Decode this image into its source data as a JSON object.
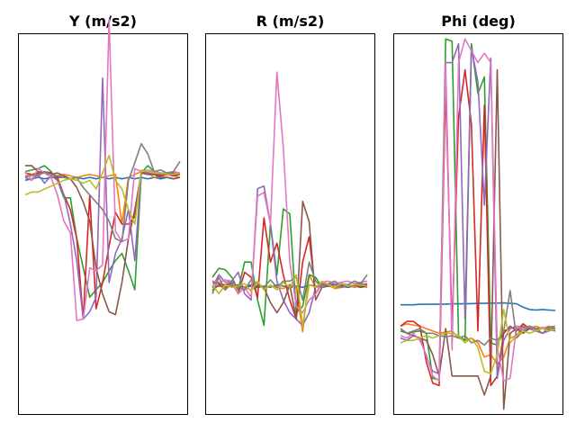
{
  "chart_data": [
    {
      "type": "line",
      "title": "Y (m/s2)",
      "x": [
        0,
        1,
        2,
        3,
        4,
        5,
        6,
        7,
        8,
        9,
        10,
        11,
        12,
        13,
        14,
        15,
        16,
        17,
        18,
        19,
        20,
        21,
        22,
        23,
        24
      ],
      "ylim": [
        -1.6,
        1.0
      ],
      "series": [
        {
          "color": "#1f77b4",
          "values": [
            0.0,
            0.01,
            0.02,
            0.01,
            0.02,
            0.02,
            0.02,
            0.01,
            0.02,
            0.01,
            0.02,
            0.01,
            0.02,
            0.01,
            0.02,
            0.01,
            0.02,
            0.01,
            0.02,
            0.01,
            0.02,
            0.01,
            0.02,
            0.01,
            0.02
          ]
        },
        {
          "color": "#ff7f0e",
          "values": [
            0.03,
            0.03,
            0.04,
            0.05,
            0.04,
            0.03,
            0.04,
            0.03,
            0.02,
            0.03,
            0.04,
            0.03,
            0.02,
            0.03,
            0.04,
            -0.3,
            0.02,
            0.04,
            0.06,
            0.05,
            0.02,
            0.03,
            0.04,
            0.03,
            0.02
          ]
        },
        {
          "color": "#2ca02c",
          "values": [
            0.06,
            0.07,
            0.08,
            0.1,
            0.06,
            0.0,
            -0.12,
            -0.12,
            -0.4,
            -0.6,
            -0.8,
            -0.75,
            -0.7,
            -0.62,
            -0.55,
            -0.5,
            -0.62,
            -0.75,
            0.05,
            0.1,
            0.06,
            0.05,
            0.04,
            0.05,
            0.05
          ]
        },
        {
          "color": "#d62728",
          "values": [
            0.05,
            0.04,
            0.05,
            0.06,
            0.05,
            0.02,
            -0.1,
            -0.2,
            -0.4,
            -0.95,
            -0.1,
            -0.88,
            -0.7,
            -0.45,
            -0.22,
            -0.3,
            -0.3,
            -0.25,
            0.06,
            0.05,
            0.04,
            0.03,
            0.04,
            0.03,
            0.04
          ]
        },
        {
          "color": "#9467bd",
          "values": [
            0.02,
            0.0,
            0.04,
            -0.02,
            0.03,
            0.0,
            -0.1,
            -0.3,
            -0.55,
            -0.95,
            -0.9,
            -0.8,
            0.7,
            -0.7,
            -0.5,
            -0.4,
            -0.2,
            -0.55,
            0.06,
            0.05,
            0.05,
            0.04,
            0.05,
            0.05,
            0.04
          ]
        },
        {
          "color": "#8c564b",
          "values": [
            0.1,
            0.1,
            0.06,
            0.05,
            0.04,
            0.05,
            0.03,
            0.01,
            -0.05,
            -0.15,
            -0.28,
            -0.6,
            -0.78,
            -0.9,
            -0.92,
            -0.7,
            -0.4,
            -0.2,
            0.05,
            0.04,
            0.04,
            0.02,
            0.02,
            0.01,
            0.02
          ]
        },
        {
          "color": "#e377c2",
          "values": [
            0.06,
            0.0,
            0.08,
            0.05,
            0.02,
            -0.1,
            -0.28,
            -0.36,
            -0.96,
            -0.95,
            -0.6,
            -0.62,
            -0.58,
            1.1,
            -0.35,
            -0.42,
            -0.4,
            0.08,
            0.06,
            0.07,
            0.06,
            0.05,
            0.05,
            0.06,
            0.05
          ]
        },
        {
          "color": "#7f7f7f",
          "values": [
            0.02,
            0.04,
            0.03,
            0.06,
            0.04,
            0.03,
            0.02,
            0.01,
            0.02,
            -0.05,
            -0.1,
            -0.15,
            -0.2,
            -0.28,
            -0.4,
            -0.42,
            0.0,
            0.12,
            0.25,
            0.18,
            0.06,
            0.07,
            0.05,
            0.06,
            0.13
          ]
        },
        {
          "color": "#bcbd22",
          "values": [
            -0.1,
            -0.08,
            -0.08,
            -0.06,
            -0.04,
            -0.02,
            0.0,
            0.01,
            0.0,
            -0.02,
            0.0,
            -0.06,
            0.05,
            0.17,
            0.0,
            -0.06,
            -0.2,
            -0.3,
            0.07,
            0.06,
            0.05,
            0.05,
            0.04,
            0.04,
            0.05
          ]
        }
      ]
    },
    {
      "type": "line",
      "title": "R (m/s2)",
      "x": [
        0,
        1,
        2,
        3,
        4,
        5,
        6,
        7,
        8,
        9,
        10,
        11,
        12,
        13,
        14,
        15,
        16,
        17,
        18,
        19,
        20,
        21,
        22,
        23,
        24
      ],
      "ylim": [
        -1.0,
        2.0
      ],
      "series": [
        {
          "color": "#1f77b4",
          "values": [
            0.0,
            0.01,
            0.0,
            0.01,
            0.02,
            0.0,
            0.01,
            0.0,
            0.01,
            0.0,
            0.02,
            0.01,
            0.0,
            0.01,
            0.0,
            0.02,
            0.01,
            0.0,
            0.01,
            0.0,
            0.01,
            0.0,
            0.01,
            0.0,
            0.01
          ]
        },
        {
          "color": "#ff7f0e",
          "values": [
            -0.03,
            0.02,
            -0.02,
            0.03,
            0.01,
            0.0,
            -0.02,
            0.02,
            0.0,
            0.01,
            0.0,
            -0.01,
            0.02,
            0.0,
            -0.35,
            0.1,
            0.0,
            0.01,
            0.02,
            -0.01,
            0.0,
            0.02,
            0.0,
            0.01,
            0.0
          ]
        },
        {
          "color": "#2ca02c",
          "values": [
            0.08,
            0.15,
            0.14,
            0.08,
            -0.02,
            0.2,
            0.2,
            -0.1,
            -0.3,
            0.5,
            0.1,
            0.62,
            0.58,
            -0.2,
            -0.15,
            0.1,
            0.08,
            0.0,
            0.02,
            0.03,
            0.02,
            0.01,
            0.02,
            0.01,
            0.02
          ]
        },
        {
          "color": "#d62728",
          "values": [
            0.04,
            0.03,
            0.02,
            0.04,
            -0.05,
            0.12,
            0.08,
            -0.08,
            0.55,
            0.2,
            0.35,
            0.1,
            -0.1,
            -0.25,
            0.2,
            0.4,
            -0.05,
            0.03,
            0.02,
            0.03,
            0.02,
            0.01,
            0.02,
            0.03,
            0.02
          ]
        },
        {
          "color": "#9467bd",
          "values": [
            0.0,
            0.1,
            0.04,
            0.05,
            0.12,
            -0.05,
            -0.1,
            0.78,
            0.8,
            0.5,
            0.05,
            -0.1,
            -0.2,
            -0.25,
            -0.3,
            -0.2,
            0.0,
            0.02,
            0.03,
            0.02,
            0.03,
            0.02,
            0.01,
            0.02,
            0.03
          ]
        },
        {
          "color": "#8c564b",
          "values": [
            -0.02,
            0.02,
            0.0,
            0.03,
            0.01,
            0.0,
            0.02,
            0.01,
            0.0,
            -0.12,
            -0.2,
            -0.12,
            0.02,
            -0.25,
            0.68,
            0.52,
            -0.1,
            0.0,
            0.01,
            0.02,
            0.0,
            0.01,
            0.02,
            0.0,
            0.01
          ]
        },
        {
          "color": "#e377c2",
          "values": [
            0.05,
            0.04,
            0.06,
            0.05,
            -0.05,
            0.0,
            -0.08,
            0.72,
            0.75,
            0.5,
            1.7,
            1.1,
            0.2,
            -0.15,
            -0.2,
            -0.1,
            -0.05,
            0.04,
            0.05,
            0.03,
            0.04,
            0.05,
            0.03,
            0.04,
            0.05
          ]
        },
        {
          "color": "#7f7f7f",
          "values": [
            -0.05,
            0.08,
            -0.02,
            0.05,
            0.0,
            -0.02,
            0.06,
            0.03,
            0.0,
            0.06,
            0.0,
            0.05,
            0.05,
            0.08,
            -0.1,
            0.2,
            0.05,
            0.0,
            0.03,
            0.05,
            0.0,
            0.02,
            0.05,
            0.03,
            0.1
          ]
        },
        {
          "color": "#bcbd22",
          "values": [
            0.02,
            -0.05,
            0.02,
            0.0,
            0.01,
            0.03,
            -0.03,
            0.05,
            -0.02,
            0.02,
            -0.02,
            0.04,
            0.0,
            0.1,
            -0.3,
            0.02,
            0.0,
            0.05,
            0.02,
            0.0,
            0.03,
            0.01,
            0.02,
            0.02,
            0.01
          ]
        }
      ]
    },
    {
      "type": "line",
      "title": "Phi (deg)",
      "x": [
        0,
        1,
        2,
        3,
        4,
        5,
        6,
        7,
        8,
        9,
        10,
        11,
        12,
        13,
        14,
        15,
        16,
        17,
        18,
        19,
        20,
        21,
        22,
        23,
        24
      ],
      "ylim": [
        -4.0,
        12.0
      ],
      "series": [
        {
          "color": "#1f77b4",
          "values": [
            0.6,
            0.6,
            0.6,
            0.62,
            0.62,
            0.62,
            0.63,
            0.63,
            0.64,
            0.64,
            0.65,
            0.65,
            0.66,
            0.66,
            0.67,
            0.67,
            0.68,
            0.66,
            0.64,
            0.5,
            0.4,
            0.38,
            0.4,
            0.38,
            0.36
          ]
        },
        {
          "color": "#ff7f0e",
          "values": [
            -0.3,
            -0.2,
            -0.25,
            -0.3,
            -0.4,
            -0.5,
            -0.6,
            -0.55,
            -0.5,
            -0.8,
            -0.9,
            -0.8,
            -1.0,
            -1.6,
            -1.5,
            -1.9,
            -1.6,
            -0.8,
            -0.7,
            -0.3,
            -0.4,
            -0.3,
            -0.4,
            -0.3,
            -0.4
          ]
        },
        {
          "color": "#2ca02c",
          "values": [
            -0.5,
            -0.6,
            -0.55,
            -0.5,
            -0.6,
            -2.5,
            -2.55,
            11.8,
            11.7,
            -0.7,
            -0.9,
            11.6,
            9.5,
            10.2,
            -1.0,
            -1.1,
            -0.5,
            -0.4,
            -0.3,
            -0.35,
            -0.3,
            -0.4,
            -0.4,
            -0.35,
            -0.4
          ]
        },
        {
          "color": "#d62728",
          "values": [
            -0.3,
            -0.1,
            -0.1,
            -0.3,
            -1.8,
            -2.7,
            -2.8,
            9.8,
            -0.4,
            8.5,
            10.5,
            8.2,
            -0.5,
            9.0,
            -2.8,
            -2.4,
            -0.6,
            -0.3,
            -0.5,
            -0.2,
            -0.4,
            -0.5,
            -0.6,
            -0.5,
            -0.4
          ]
        },
        {
          "color": "#9467bd",
          "values": [
            -0.8,
            -0.9,
            -0.7,
            -0.8,
            -1.6,
            -2.2,
            -2.3,
            10.8,
            10.8,
            11.6,
            0.0,
            11.4,
            10.0,
            4.8,
            11.0,
            -2.5,
            -0.9,
            -0.4,
            -0.3,
            -0.5,
            -0.4,
            -0.5,
            -0.6,
            -0.5,
            -0.4
          ]
        },
        {
          "color": "#8c564b",
          "values": [
            -0.4,
            -0.6,
            -0.7,
            -0.8,
            -0.9,
            -1.5,
            -2.4,
            -0.4,
            -2.4,
            -2.4,
            -2.4,
            -2.4,
            -2.4,
            -3.2,
            -2.4,
            10.5,
            -3.8,
            -0.6,
            -0.4,
            -0.6,
            -0.4,
            -0.45,
            -0.4,
            -0.45,
            -0.5
          ]
        },
        {
          "color": "#e377c2",
          "values": [
            -0.7,
            -0.8,
            -0.6,
            -0.9,
            -1.5,
            -2.4,
            -2.6,
            10.8,
            -1.3,
            10.8,
            11.8,
            11.3,
            10.8,
            11.2,
            10.8,
            -1.2,
            -2.6,
            -2.5,
            -0.3,
            -0.4,
            -0.3,
            -0.5,
            -0.35,
            -0.4,
            -0.45
          ]
        },
        {
          "color": "#7f7f7f",
          "values": [
            -0.4,
            -0.6,
            -0.5,
            -0.4,
            -0.6,
            -0.6,
            -0.7,
            -0.75,
            -0.7,
            -0.8,
            -0.7,
            -1.0,
            -0.9,
            -1.1,
            -0.8,
            -0.9,
            -0.5,
            1.2,
            -0.8,
            -0.5,
            -0.3,
            -0.4,
            -0.6,
            -0.35,
            -0.3
          ]
        },
        {
          "color": "#bcbd22",
          "values": [
            -1.0,
            -0.9,
            -0.9,
            -0.8,
            -0.7,
            -0.8,
            -0.7,
            -0.6,
            -0.6,
            -0.7,
            -1.0,
            -0.8,
            -1.2,
            -2.2,
            -2.3,
            -1.5,
            0.4,
            -1.0,
            -0.7,
            -0.5,
            -0.6,
            -0.5,
            -0.4,
            -0.5,
            -0.45
          ]
        }
      ]
    }
  ]
}
